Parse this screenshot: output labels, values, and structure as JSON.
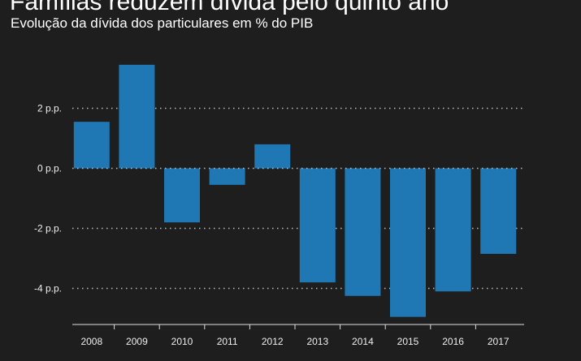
{
  "chart_data": {
    "type": "bar",
    "title": "Famílias reduzem dívida pelo quinto ano",
    "subtitle": "Evolução da dívida dos particulares em % do PIB",
    "xlabel": "",
    "ylabel": "",
    "categories": [
      "2008",
      "2009",
      "2010",
      "2011",
      "2012",
      "2013",
      "2014",
      "2015",
      "2016",
      "2017"
    ],
    "values": [
      1.55,
      3.45,
      -1.8,
      -0.55,
      0.8,
      -3.8,
      -4.25,
      -4.95,
      -4.1,
      -2.85
    ],
    "yticks": [
      2,
      0,
      -2,
      -4
    ],
    "ytick_labels": [
      "2 p.p.",
      "0 p.p.",
      "-2 p.p.",
      "-4 p.p."
    ],
    "ylim": [
      -5.2,
      3.6
    ],
    "grid": true,
    "bar_color": "#1f77b4"
  }
}
